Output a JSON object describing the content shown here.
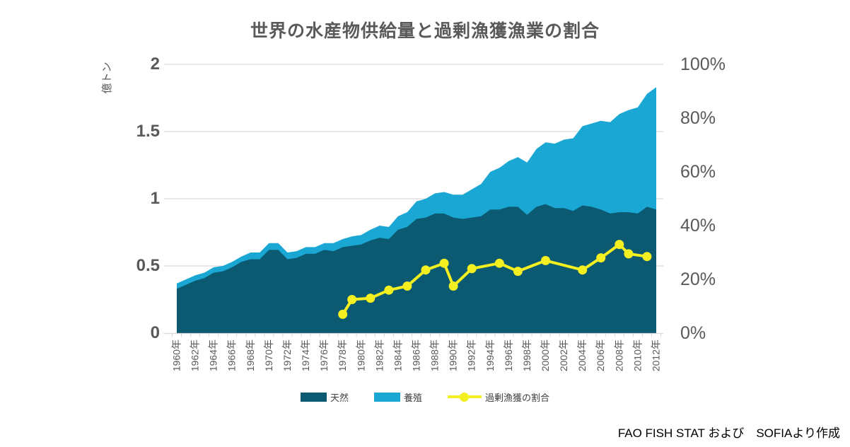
{
  "source_note": "FAO FISH STAT および　SOFIAより作成",
  "colors": {
    "wild": "#0b5a72",
    "aqua": "#1ba7d3",
    "line": "#f4ef20",
    "grid": "#d9d9d9",
    "axis_text": "#595959",
    "legend_text": "#404040",
    "source_text": "#000000",
    "background": "#ffffff"
  },
  "chart_data": {
    "type": "area",
    "title": "世界の水産物供給量と過剰漁獲漁業の割合",
    "subtitle": "",
    "grid": "horizontal",
    "legend_position": "bottom",
    "left_axis": {
      "label": "億トン",
      "min": 0,
      "max": 2,
      "ticks": [
        {
          "v": 2,
          "label": "2"
        },
        {
          "v": 1.5,
          "label": "1.5"
        },
        {
          "v": 1,
          "label": "1"
        },
        {
          "v": 0.5,
          "label": "0.5"
        },
        {
          "v": 0,
          "label": "0"
        }
      ]
    },
    "right_axis": {
      "label": "",
      "min": 0,
      "max": 100,
      "ticks": [
        {
          "v": 100,
          "label": "100%"
        },
        {
          "v": 80,
          "label": "80%"
        },
        {
          "v": 60,
          "label": "60%"
        },
        {
          "v": 40,
          "label": "40%"
        },
        {
          "v": 20,
          "label": "20%"
        },
        {
          "v": 0,
          "label": "0%"
        }
      ]
    },
    "years": [
      1960,
      1961,
      1962,
      1963,
      1964,
      1965,
      1966,
      1967,
      1968,
      1969,
      1970,
      1971,
      1972,
      1973,
      1974,
      1975,
      1976,
      1977,
      1978,
      1979,
      1980,
      1981,
      1982,
      1983,
      1984,
      1985,
      1986,
      1987,
      1988,
      1989,
      1990,
      1991,
      1992,
      1993,
      1994,
      1995,
      1996,
      1997,
      1998,
      1999,
      2000,
      2001,
      2002,
      2003,
      2004,
      2005,
      2006,
      2007,
      2008,
      2009,
      2010,
      2011,
      2012
    ],
    "x_tick_labels": [
      "1960年",
      "1962年",
      "1964年",
      "1966年",
      "1968年",
      "1970年",
      "1972年",
      "1974年",
      "1976年",
      "1978年",
      "1980年",
      "1982年",
      "1984年",
      "1986年",
      "1988年",
      "1990年",
      "1992年",
      "1994年",
      "1996年",
      "1998年",
      "2000年",
      "2002年",
      "2004年",
      "2006年",
      "2008年",
      "2010年",
      "2012年"
    ],
    "series": [
      {
        "name": "天然",
        "type": "area",
        "axis": "left",
        "unit": "億トン",
        "values": [
          0.33,
          0.36,
          0.39,
          0.41,
          0.45,
          0.46,
          0.49,
          0.53,
          0.55,
          0.55,
          0.62,
          0.62,
          0.55,
          0.56,
          0.59,
          0.59,
          0.62,
          0.61,
          0.64,
          0.65,
          0.66,
          0.69,
          0.71,
          0.7,
          0.77,
          0.79,
          0.85,
          0.86,
          0.89,
          0.89,
          0.86,
          0.85,
          0.86,
          0.87,
          0.92,
          0.92,
          0.94,
          0.94,
          0.88,
          0.94,
          0.96,
          0.93,
          0.93,
          0.91,
          0.95,
          0.94,
          0.92,
          0.89,
          0.9,
          0.9,
          0.89,
          0.94,
          0.92
        ]
      },
      {
        "name": "養殖",
        "type": "area",
        "axis": "left",
        "unit": "億トン",
        "stacked_on": "天然",
        "values": [
          0.04,
          0.04,
          0.04,
          0.04,
          0.04,
          0.04,
          0.04,
          0.04,
          0.05,
          0.05,
          0.05,
          0.05,
          0.05,
          0.05,
          0.05,
          0.05,
          0.05,
          0.06,
          0.06,
          0.07,
          0.07,
          0.08,
          0.09,
          0.09,
          0.1,
          0.11,
          0.13,
          0.14,
          0.15,
          0.16,
          0.17,
          0.18,
          0.21,
          0.24,
          0.28,
          0.31,
          0.34,
          0.37,
          0.39,
          0.43,
          0.46,
          0.48,
          0.51,
          0.54,
          0.59,
          0.62,
          0.66,
          0.68,
          0.73,
          0.76,
          0.79,
          0.84,
          0.91
        ]
      },
      {
        "name": "過剰漁獲の割合",
        "type": "line",
        "axis": "right",
        "unit": "%",
        "points": [
          {
            "year": 1978,
            "pct": 7
          },
          {
            "year": 1979,
            "pct": 12.5
          },
          {
            "year": 1981,
            "pct": 13
          },
          {
            "year": 1983,
            "pct": 16
          },
          {
            "year": 1985,
            "pct": 17.5
          },
          {
            "year": 1987,
            "pct": 23.5
          },
          {
            "year": 1989,
            "pct": 26
          },
          {
            "year": 1990,
            "pct": 17.5
          },
          {
            "year": 1992,
            "pct": 24
          },
          {
            "year": 1995,
            "pct": 26
          },
          {
            "year": 1997,
            "pct": 23
          },
          {
            "year": 2000,
            "pct": 27
          },
          {
            "year": 2004,
            "pct": 23.5
          },
          {
            "year": 2006,
            "pct": 28
          },
          {
            "year": 2008,
            "pct": 33
          },
          {
            "year": 2009,
            "pct": 29.5
          },
          {
            "year": 2011,
            "pct": 28.5
          }
        ]
      }
    ],
    "legend": [
      "天然",
      "養殖",
      "過剰漁獲の割合"
    ]
  }
}
